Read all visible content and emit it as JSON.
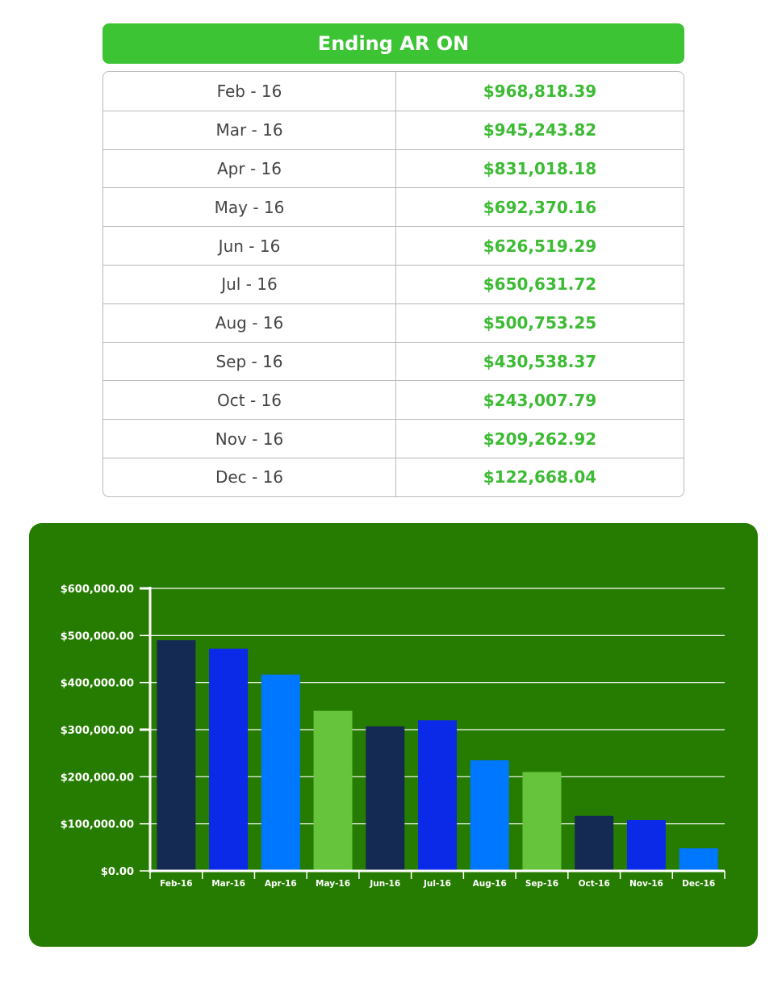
{
  "table": {
    "title": "Ending AR ON",
    "rows": [
      {
        "month": "Feb - 16",
        "value": "$968,818.39"
      },
      {
        "month": "Mar - 16",
        "value": "$945,243.82"
      },
      {
        "month": "Apr - 16",
        "value": "$831,018.18"
      },
      {
        "month": "May - 16",
        "value": "$692,370.16"
      },
      {
        "month": "Jun - 16",
        "value": "$626,519.29"
      },
      {
        "month": "Jul - 16",
        "value": "$650,631.72"
      },
      {
        "month": "Aug - 16",
        "value": "$500,753.25"
      },
      {
        "month": "Sep - 16",
        "value": "$430,538.37"
      },
      {
        "month": "Oct - 16",
        "value": "$243,007.79"
      },
      {
        "month": "Nov - 16",
        "value": "$209,262.92"
      },
      {
        "month": "Dec - 16",
        "value": "$122,668.04"
      }
    ]
  },
  "chart_data": {
    "type": "bar",
    "categories": [
      "Feb-16",
      "Mar-16",
      "Apr-16",
      "May-16",
      "Jun-16",
      "Jul-16",
      "Aug-16",
      "Sep-16",
      "Oct-16",
      "Nov-16",
      "Dec-16"
    ],
    "values": [
      490000,
      472000,
      417000,
      340000,
      307000,
      320000,
      235000,
      210000,
      117000,
      108000,
      48000
    ],
    "bar_colors": [
      "#142a52",
      "#0a2ae8",
      "#0077ff",
      "#66c43c",
      "#142a52",
      "#0a2ae8",
      "#0077ff",
      "#66c43c",
      "#142a52",
      "#0a2ae8",
      "#0077ff"
    ],
    "ylim": [
      0,
      600000
    ],
    "yticks": [
      0,
      100000,
      200000,
      300000,
      400000,
      500000,
      600000
    ],
    "ytick_labels": [
      "$0.00",
      "$100,000.00",
      "$200,000.00",
      "$300,000.00",
      "$400,000.00",
      "$500,000.00",
      "$600,000.00"
    ],
    "grid": true,
    "title": "",
    "xlabel": "",
    "ylabel": ""
  }
}
